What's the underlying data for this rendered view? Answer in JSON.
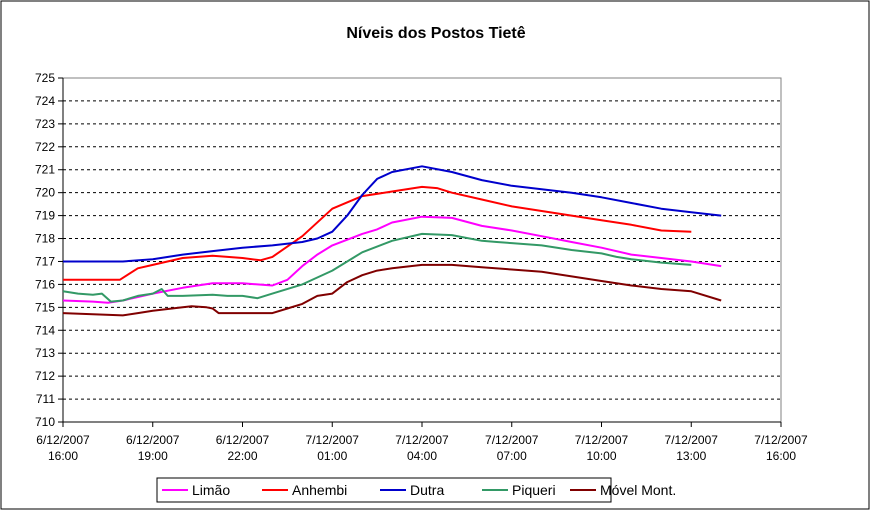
{
  "chart_data": {
    "type": "line",
    "title": "Níveis dos Postos Tietê",
    "xlabel": "",
    "ylabel": "",
    "ylim": [
      710,
      725
    ],
    "y_ticks": [
      710,
      711,
      712,
      713,
      714,
      715,
      716,
      717,
      718,
      719,
      720,
      721,
      722,
      723,
      724,
      725
    ],
    "x_tick_labels": [
      [
        "6/12/2007",
        "16:00"
      ],
      [
        "6/12/2007",
        "19:00"
      ],
      [
        "6/12/2007",
        "22:00"
      ],
      [
        "7/12/2007",
        "01:00"
      ],
      [
        "7/12/2007",
        "04:00"
      ],
      [
        "7/12/2007",
        "07:00"
      ],
      [
        "7/12/2007",
        "10:00"
      ],
      [
        "7/12/2007",
        "13:00"
      ],
      [
        "7/12/2007",
        "16:00"
      ]
    ],
    "x_unit": "hours from 6/12/2007 16:00",
    "xlim": [
      0,
      24
    ],
    "grid": "horizontal dashed",
    "legend_position": "bottom",
    "series": [
      {
        "name": "Limão",
        "color": "#ff00ff",
        "points": [
          [
            0,
            715.3
          ],
          [
            1,
            715.25
          ],
          [
            1.5,
            715.2
          ],
          [
            2,
            715.3
          ],
          [
            3,
            715.6
          ],
          [
            4,
            715.85
          ],
          [
            5,
            716.05
          ],
          [
            6,
            716.05
          ],
          [
            7,
            715.95
          ],
          [
            7.5,
            716.2
          ],
          [
            8,
            716.8
          ],
          [
            8.5,
            717.3
          ],
          [
            9,
            717.7
          ],
          [
            10,
            718.2
          ],
          [
            10.5,
            718.4
          ],
          [
            11,
            718.7
          ],
          [
            12,
            718.95
          ],
          [
            13,
            718.9
          ],
          [
            14,
            718.55
          ],
          [
            15,
            718.35
          ],
          [
            16,
            718.1
          ],
          [
            17,
            717.85
          ],
          [
            18,
            717.6
          ],
          [
            19,
            717.3
          ],
          [
            20,
            717.15
          ],
          [
            21,
            717.0
          ],
          [
            22,
            716.8
          ]
        ]
      },
      {
        "name": "Anhembi",
        "color": "#ff0000",
        "points": [
          [
            0,
            716.2
          ],
          [
            1,
            716.2
          ],
          [
            1.9,
            716.2
          ],
          [
            2.5,
            716.7
          ],
          [
            3,
            716.85
          ],
          [
            4,
            717.15
          ],
          [
            5,
            717.25
          ],
          [
            6,
            717.15
          ],
          [
            6.6,
            717.05
          ],
          [
            7,
            717.2
          ],
          [
            8,
            718.1
          ],
          [
            9,
            719.3
          ],
          [
            10,
            719.85
          ],
          [
            11,
            720.05
          ],
          [
            12,
            720.25
          ],
          [
            12.5,
            720.2
          ],
          [
            13,
            720.0
          ],
          [
            14,
            719.7
          ],
          [
            15,
            719.4
          ],
          [
            16,
            719.2
          ],
          [
            17,
            719.0
          ],
          [
            18,
            718.8
          ],
          [
            19,
            718.6
          ],
          [
            20,
            718.35
          ],
          [
            21,
            718.3
          ]
        ]
      },
      {
        "name": "Dutra",
        "color": "#0000cc",
        "points": [
          [
            0,
            717.0
          ],
          [
            1,
            717.0
          ],
          [
            2,
            717.0
          ],
          [
            3,
            717.1
          ],
          [
            4,
            717.3
          ],
          [
            5,
            717.45
          ],
          [
            6,
            717.6
          ],
          [
            7,
            717.7
          ],
          [
            8,
            717.85
          ],
          [
            8.5,
            718.0
          ],
          [
            9,
            718.3
          ],
          [
            9.5,
            719.0
          ],
          [
            10,
            719.9
          ],
          [
            10.5,
            720.6
          ],
          [
            11,
            720.9
          ],
          [
            12,
            721.15
          ],
          [
            13,
            720.9
          ],
          [
            14,
            720.55
          ],
          [
            15,
            720.3
          ],
          [
            16,
            720.15
          ],
          [
            17,
            720.0
          ],
          [
            18,
            719.8
          ],
          [
            19,
            719.55
          ],
          [
            20,
            719.3
          ],
          [
            21,
            719.15
          ],
          [
            22,
            719.0
          ]
        ]
      },
      {
        "name": "Piqueri",
        "color": "#339966",
        "points": [
          [
            0,
            715.7
          ],
          [
            0.5,
            715.6
          ],
          [
            1,
            715.55
          ],
          [
            1.3,
            715.6
          ],
          [
            1.6,
            715.25
          ],
          [
            2,
            715.3
          ],
          [
            2.5,
            715.5
          ],
          [
            3,
            715.6
          ],
          [
            3.3,
            715.8
          ],
          [
            3.5,
            715.5
          ],
          [
            4,
            715.5
          ],
          [
            5,
            715.55
          ],
          [
            5.5,
            715.5
          ],
          [
            6,
            715.5
          ],
          [
            6.5,
            715.4
          ],
          [
            7,
            715.6
          ],
          [
            8,
            716.0
          ],
          [
            9,
            716.6
          ],
          [
            10,
            717.4
          ],
          [
            11,
            717.9
          ],
          [
            12,
            718.2
          ],
          [
            13,
            718.15
          ],
          [
            14,
            717.9
          ],
          [
            14.5,
            717.85
          ],
          [
            15,
            717.8
          ],
          [
            16,
            717.7
          ],
          [
            17,
            717.5
          ],
          [
            18,
            717.35
          ],
          [
            18.5,
            717.2
          ],
          [
            19,
            717.1
          ],
          [
            20,
            716.95
          ],
          [
            21,
            716.85
          ]
        ]
      },
      {
        "name": "Móvel Mont.",
        "color": "#800000",
        "points": [
          [
            0,
            714.75
          ],
          [
            1,
            714.7
          ],
          [
            2,
            714.65
          ],
          [
            2.5,
            714.75
          ],
          [
            3,
            714.85
          ],
          [
            4,
            715.0
          ],
          [
            4.3,
            715.05
          ],
          [
            4.8,
            715.0
          ],
          [
            5,
            714.95
          ],
          [
            5.2,
            714.75
          ],
          [
            6,
            714.75
          ],
          [
            7,
            714.75
          ],
          [
            7.5,
            714.95
          ],
          [
            8,
            715.15
          ],
          [
            8.5,
            715.5
          ],
          [
            9,
            715.6
          ],
          [
            9.5,
            716.1
          ],
          [
            10,
            716.4
          ],
          [
            10.5,
            716.6
          ],
          [
            11,
            716.7
          ],
          [
            12,
            716.85
          ],
          [
            13,
            716.85
          ],
          [
            14,
            716.75
          ],
          [
            15,
            716.65
          ],
          [
            16,
            716.55
          ],
          [
            17,
            716.35
          ],
          [
            18,
            716.15
          ],
          [
            19,
            715.95
          ],
          [
            20,
            715.8
          ],
          [
            21,
            715.7
          ],
          [
            22,
            715.3
          ]
        ]
      }
    ]
  }
}
